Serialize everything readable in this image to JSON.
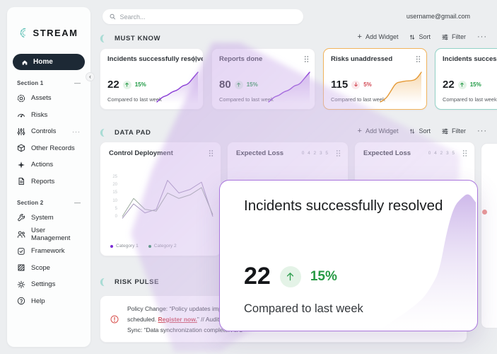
{
  "app": {
    "name": "STREAM"
  },
  "topbar": {
    "search_placeholder": "Search...",
    "user_email": "username@gmail.com"
  },
  "sidebar": {
    "home_label": "Home",
    "collapse_glyph": "‹",
    "sections": [
      {
        "label": "Section 1",
        "collapse_glyph": "—",
        "items": [
          {
            "label": "Assets"
          },
          {
            "label": "Risks"
          },
          {
            "label": "Controls",
            "more": "···"
          },
          {
            "label": "Other Records"
          },
          {
            "label": "Actions"
          },
          {
            "label": "Reports"
          }
        ]
      },
      {
        "label": "Section 2",
        "collapse_glyph": "—",
        "items": [
          {
            "label": "System"
          },
          {
            "label": "User Management"
          },
          {
            "label": "Framework"
          },
          {
            "label": "Scope"
          },
          {
            "label": "Settings"
          },
          {
            "label": "Help"
          }
        ]
      }
    ]
  },
  "sections": {
    "must_know": "MUST KNOW",
    "data_pad": "DATA PAD",
    "risk_pulse": "RISK PULSE"
  },
  "section_actions": {
    "add": "Add Widget",
    "sort": "Sort",
    "filter": "Filter",
    "more": "···"
  },
  "widgets": [
    {
      "title": "Incidents  successfully resolved",
      "value": "22",
      "direction": "up",
      "delta": "15%",
      "note": "Compared to last week"
    },
    {
      "title": "Reports done",
      "value": "80",
      "direction": "up",
      "delta": "15%",
      "note": "Compared to last week"
    },
    {
      "title": "Risks unaddressed",
      "value": "115",
      "direction": "down",
      "delta": "5%",
      "note": "Compared to last week"
    },
    {
      "title": "Incidents successfully resolved",
      "value": "22",
      "direction": "up",
      "delta": "15%",
      "note": "Compared to last week"
    }
  ],
  "datapad": [
    {
      "title": "Control Deployment"
    },
    {
      "title": "Expected Loss",
      "pager": "0 4 2 3 5"
    },
    {
      "title": "Expected Loss",
      "pager": "0 4 2 3 5"
    }
  ],
  "modal": {
    "title": "Incidents successfully resolved",
    "value": "22",
    "delta": "15%",
    "note": "Compared to last week"
  },
  "risk_pulse": {
    "line1": "Policy Change: “Policy updates implemen",
    "line2_pre": "scheduled. ",
    "line2_link": "Register now.",
    "line2_post": "” // Audit Remind",
    "line3": "Sync: “Data synchronization complete. All s"
  },
  "colors": {
    "teal": "#63c3b9",
    "purple": "#8b3fd6",
    "orange": "#e59a36",
    "green": "#239a44",
    "red": "#d34a55",
    "beam": "#c5a3e6"
  },
  "chart_data": {
    "control_deployment": {
      "type": "line",
      "title": "Control Deployment",
      "yticks": [
        "25",
        "20",
        "15",
        "10",
        "5",
        "0"
      ],
      "ymax": 25,
      "grid": false,
      "x": [
        0,
        1,
        2,
        3,
        4,
        5,
        6,
        7,
        8
      ],
      "series": [
        {
          "name": "Category 1",
          "color": "#7a2bd4",
          "values": [
            1,
            9,
            4,
            6,
            22,
            15,
            17,
            21,
            2
          ]
        },
        {
          "name": "Category 2",
          "color": "#1d8a4e",
          "values": [
            2,
            12,
            6,
            5,
            15,
            12,
            14,
            18,
            3
          ]
        }
      ],
      "legend_position": "bottom"
    },
    "sparklines": {
      "incidents": {
        "type": "area",
        "values": [
          0.5,
          2,
          2.4,
          3.6,
          4,
          5.4,
          5.7,
          7.6,
          9.4
        ]
      },
      "reports": {
        "type": "area",
        "values": [
          0.5,
          2,
          2.4,
          3.6,
          4,
          5.4,
          5.7,
          7.6,
          9.4
        ]
      },
      "risks": {
        "type": "area",
        "values": [
          0.5,
          1.2,
          3.4,
          5.8,
          6.1,
          6.4,
          6.4,
          6.8,
          8.8
        ]
      },
      "modal_detail": {
        "type": "area",
        "values": [
          0.3,
          0.6,
          1,
          1.3,
          1.7,
          2.1,
          2.6,
          3.4,
          4.4,
          7.2,
          9,
          9.6,
          10,
          9.3
        ]
      }
    }
  }
}
